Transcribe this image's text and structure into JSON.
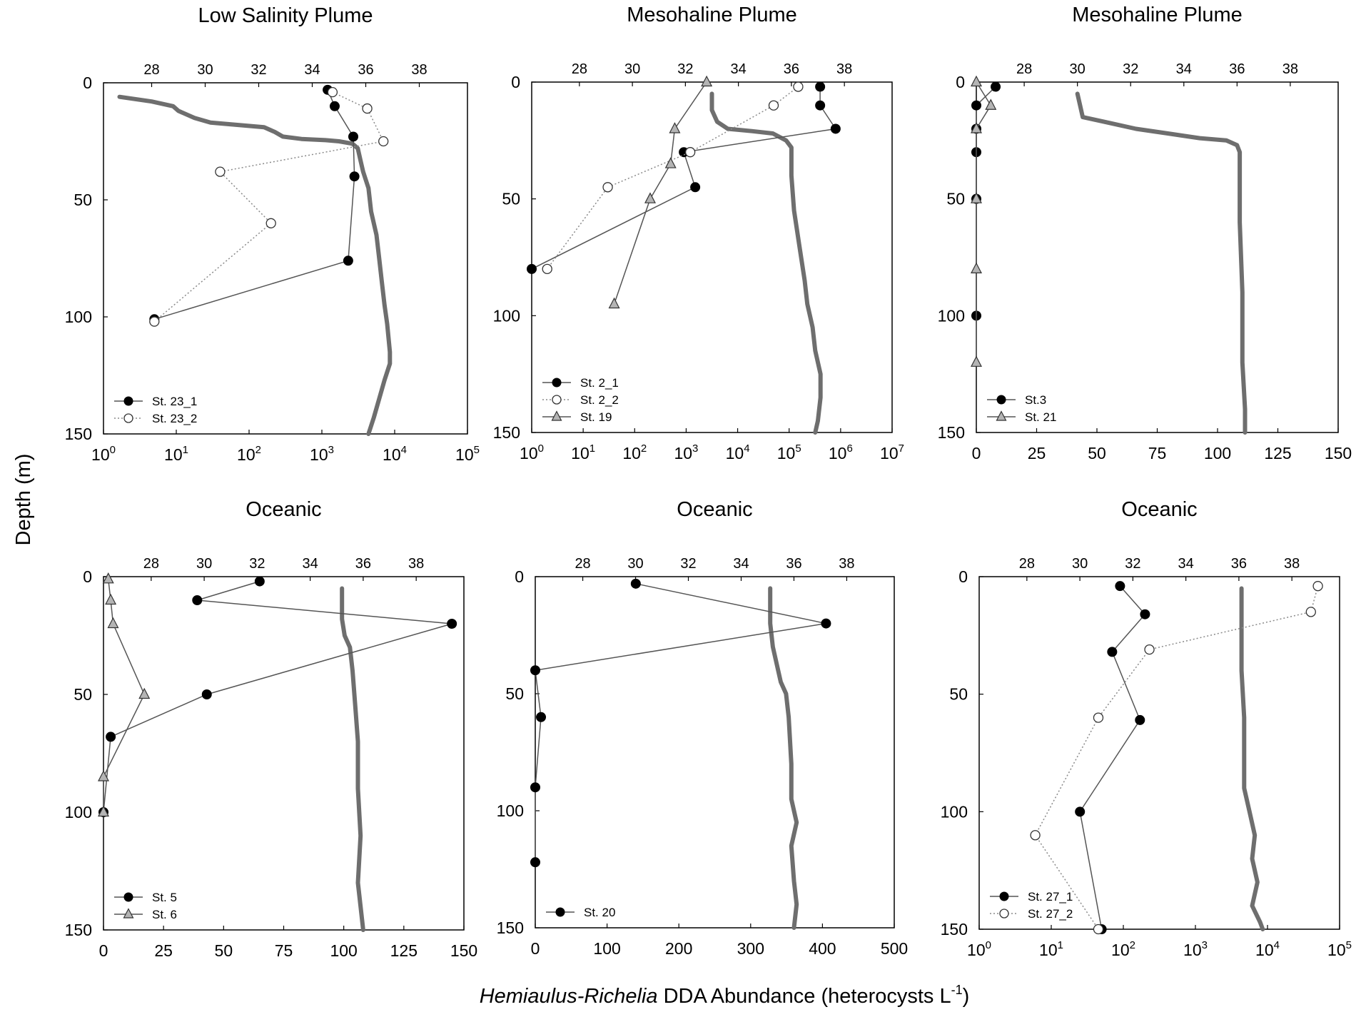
{
  "figure": {
    "ylabel": "Depth (m)",
    "xlabel_italic": "Hemiaulus-Richelia",
    "xlabel_rest": " DDA Abundance (heterocysts L",
    "xlabel_sup": "-1",
    "xlabel_end": ")"
  },
  "colors": {
    "axis": "#000000",
    "salinity": "#6e6e6e",
    "series_line": "#555555",
    "filled": "#000000",
    "open": "#ffffff",
    "triangle": "#b4b4b4"
  },
  "salinity_axis": {
    "ticks": [
      28,
      30,
      32,
      34,
      36,
      38
    ],
    "range": [
      26.2,
      39.8
    ]
  },
  "chart_data": [
    {
      "type": "line",
      "title": "Low Salinity Plume",
      "x_scale": "log",
      "x_ticks": [
        {
          "v": 1,
          "base": "10",
          "exp": "0"
        },
        {
          "v": 10,
          "base": "10",
          "exp": "1"
        },
        {
          "v": 100,
          "base": "10",
          "exp": "2"
        },
        {
          "v": 1000,
          "base": "10",
          "exp": "3"
        },
        {
          "v": 10000,
          "base": "10",
          "exp": "4"
        },
        {
          "v": 100000,
          "base": "10",
          "exp": "5"
        }
      ],
      "xlim": [
        1,
        100000
      ],
      "y_ticks": [
        0,
        50,
        100,
        150
      ],
      "ylim": [
        0,
        150
      ],
      "salinity": [
        [
          26.8,
          6
        ],
        [
          28.0,
          8
        ],
        [
          28.8,
          10
        ],
        [
          29.0,
          12
        ],
        [
          29.6,
          15
        ],
        [
          30.2,
          17
        ],
        [
          31.2,
          18
        ],
        [
          32.2,
          19
        ],
        [
          32.6,
          21
        ],
        [
          32.9,
          23
        ],
        [
          33.6,
          24
        ],
        [
          34.5,
          24.5
        ],
        [
          35.0,
          25
        ],
        [
          35.5,
          26
        ],
        [
          35.7,
          28
        ],
        [
          35.8,
          33
        ],
        [
          35.9,
          38
        ],
        [
          36.1,
          45
        ],
        [
          36.2,
          55
        ],
        [
          36.4,
          65
        ],
        [
          36.5,
          75
        ],
        [
          36.6,
          85
        ],
        [
          36.7,
          95
        ],
        [
          36.8,
          103
        ],
        [
          36.9,
          115
        ],
        [
          36.9,
          120
        ],
        [
          36.7,
          127
        ],
        [
          36.5,
          135
        ],
        [
          36.3,
          143
        ],
        [
          36.1,
          150
        ]
      ],
      "series": [
        {
          "name": "St. 23_1",
          "marker": "filled",
          "dotted": false,
          "points": [
            [
              1200,
              3
            ],
            [
              1500,
              10
            ],
            [
              2700,
              23
            ],
            [
              2800,
              40
            ],
            [
              2300,
              76
            ],
            [
              5,
              101
            ]
          ]
        },
        {
          "name": "St. 23_2",
          "marker": "open",
          "dotted": true,
          "points": [
            [
              1400,
              4
            ],
            [
              4200,
              11
            ],
            [
              7000,
              25
            ],
            [
              40,
              38
            ],
            [
              200,
              60
            ],
            [
              5,
              102
            ]
          ]
        }
      ]
    },
    {
      "type": "line",
      "title": "Mesohaline Plume",
      "x_scale": "log",
      "x_ticks": [
        {
          "v": 1,
          "base": "10",
          "exp": "0"
        },
        {
          "v": 10,
          "base": "10",
          "exp": "1"
        },
        {
          "v": 100,
          "base": "10",
          "exp": "2"
        },
        {
          "v": 1000,
          "base": "10",
          "exp": "3"
        },
        {
          "v": 10000,
          "base": "10",
          "exp": "4"
        },
        {
          "v": 100000,
          "base": "10",
          "exp": "5"
        },
        {
          "v": 1000000,
          "base": "10",
          "exp": "6"
        },
        {
          "v": 10000000,
          "base": "10",
          "exp": "7"
        }
      ],
      "xlim": [
        1,
        10000000
      ],
      "y_ticks": [
        0,
        50,
        100,
        150
      ],
      "ylim": [
        0,
        150
      ],
      "salinity": [
        [
          33.0,
          5
        ],
        [
          33.0,
          12
        ],
        [
          33.2,
          17
        ],
        [
          33.6,
          20
        ],
        [
          34.5,
          21
        ],
        [
          35.3,
          22
        ],
        [
          35.8,
          25
        ],
        [
          36.0,
          28
        ],
        [
          36.0,
          40
        ],
        [
          36.1,
          55
        ],
        [
          36.3,
          70
        ],
        [
          36.5,
          85
        ],
        [
          36.6,
          95
        ],
        [
          36.8,
          105
        ],
        [
          36.9,
          115
        ],
        [
          37.1,
          125
        ],
        [
          37.1,
          135
        ],
        [
          37.0,
          145
        ],
        [
          36.9,
          150
        ]
      ],
      "series": [
        {
          "name": "St. 2_1",
          "marker": "filled",
          "dotted": false,
          "points": [
            [
              400000,
              2
            ],
            [
              400000,
              10
            ],
            [
              800000,
              20
            ],
            [
              900,
              30
            ],
            [
              1500,
              45
            ],
            [
              1,
              80
            ]
          ]
        },
        {
          "name": "St. 2_2",
          "marker": "open",
          "dotted": true,
          "points": [
            [
              150000,
              2
            ],
            [
              50000,
              10
            ],
            [
              1200,
              30
            ],
            [
              30,
              45
            ],
            [
              2,
              80
            ]
          ]
        },
        {
          "name": "St. 19",
          "marker": "triangle",
          "dotted": false,
          "points": [
            [
              2500,
              0
            ],
            [
              600,
              20
            ],
            [
              500,
              35
            ],
            [
              200,
              50
            ],
            [
              40,
              95
            ]
          ]
        }
      ]
    },
    {
      "type": "line",
      "title": "Mesohaline Plume",
      "x_scale": "linear",
      "x_ticks": [
        {
          "v": 0,
          "label": "0"
        },
        {
          "v": 25,
          "label": "25"
        },
        {
          "v": 50,
          "label": "50"
        },
        {
          "v": 75,
          "label": "75"
        },
        {
          "v": 100,
          "label": "100"
        },
        {
          "v": 125,
          "label": "125"
        },
        {
          "v": 150,
          "label": "150"
        }
      ],
      "xlim": [
        0,
        150
      ],
      "y_ticks": [
        0,
        50,
        100,
        150
      ],
      "ylim": [
        0,
        150
      ],
      "salinity": [
        [
          30.0,
          5
        ],
        [
          30.1,
          10
        ],
        [
          30.2,
          15
        ],
        [
          31.0,
          17
        ],
        [
          32.2,
          20
        ],
        [
          33.4,
          22
        ],
        [
          34.6,
          24
        ],
        [
          35.6,
          25
        ],
        [
          36.0,
          27
        ],
        [
          36.1,
          30
        ],
        [
          36.1,
          60
        ],
        [
          36.2,
          90
        ],
        [
          36.2,
          120
        ],
        [
          36.3,
          140
        ],
        [
          36.3,
          150
        ]
      ],
      "series": [
        {
          "name": "St.3",
          "marker": "filled",
          "dotted": false,
          "points": [
            [
              8,
              2
            ],
            [
              0,
              10
            ],
            [
              0,
              20
            ],
            [
              0,
              30
            ],
            [
              0,
              50
            ],
            [
              0,
              100
            ]
          ]
        },
        {
          "name": "St. 21",
          "marker": "triangle",
          "dotted": false,
          "points": [
            [
              0,
              0
            ],
            [
              6,
              10
            ],
            [
              0,
              20
            ],
            [
              0,
              50
            ],
            [
              0,
              80
            ],
            [
              0,
              120
            ]
          ]
        }
      ]
    },
    {
      "type": "line",
      "title": "Oceanic",
      "x_scale": "linear",
      "x_ticks": [
        {
          "v": 0,
          "label": "0"
        },
        {
          "v": 25,
          "label": "25"
        },
        {
          "v": 50,
          "label": "50"
        },
        {
          "v": 75,
          "label": "75"
        },
        {
          "v": 100,
          "label": "100"
        },
        {
          "v": 125,
          "label": "125"
        },
        {
          "v": 150,
          "label": "150"
        }
      ],
      "xlim": [
        0,
        150
      ],
      "y_ticks": [
        0,
        50,
        100,
        150
      ],
      "ylim": [
        0,
        150
      ],
      "salinity": [
        [
          35.2,
          5
        ],
        [
          35.2,
          18
        ],
        [
          35.3,
          25
        ],
        [
          35.5,
          30
        ],
        [
          35.6,
          40
        ],
        [
          35.7,
          55
        ],
        [
          35.8,
          70
        ],
        [
          35.8,
          90
        ],
        [
          35.9,
          110
        ],
        [
          35.8,
          130
        ],
        [
          35.9,
          140
        ],
        [
          36.0,
          150
        ]
      ],
      "series": [
        {
          "name": "St. 5",
          "marker": "filled",
          "dotted": false,
          "points": [
            [
              65,
              2
            ],
            [
              39,
              10
            ],
            [
              145,
              20
            ],
            [
              43,
              50
            ],
            [
              3,
              68
            ],
            [
              0,
              100
            ]
          ]
        },
        {
          "name": "St. 6",
          "marker": "triangle",
          "dotted": false,
          "points": [
            [
              2,
              1
            ],
            [
              3,
              10
            ],
            [
              4,
              20
            ],
            [
              17,
              50
            ],
            [
              0,
              85
            ],
            [
              0,
              100
            ]
          ]
        }
      ]
    },
    {
      "type": "line",
      "title": "Oceanic",
      "x_scale": "linear",
      "x_ticks": [
        {
          "v": 0,
          "label": "0"
        },
        {
          "v": 100,
          "label": "100"
        },
        {
          "v": 200,
          "label": "200"
        },
        {
          "v": 300,
          "label": "300"
        },
        {
          "v": 400,
          "label": "400"
        },
        {
          "v": 500,
          "label": "500"
        }
      ],
      "xlim": [
        0,
        500
      ],
      "y_ticks": [
        0,
        50,
        100,
        150
      ],
      "ylim": [
        0,
        150
      ],
      "salinity": [
        [
          35.1,
          5
        ],
        [
          35.1,
          20
        ],
        [
          35.2,
          30
        ],
        [
          35.5,
          45
        ],
        [
          35.7,
          50
        ],
        [
          35.8,
          60
        ],
        [
          35.9,
          80
        ],
        [
          35.9,
          95
        ],
        [
          36.1,
          105
        ],
        [
          35.9,
          115
        ],
        [
          36.0,
          130
        ],
        [
          36.1,
          140
        ],
        [
          36.0,
          150
        ]
      ],
      "series": [
        {
          "name": "St. 20",
          "marker": "filled",
          "dotted": false,
          "points": [
            [
              140,
              3
            ],
            [
              405,
              20
            ],
            [
              0,
              40
            ],
            [
              8,
              60
            ],
            [
              0,
              90
            ],
            [
              0,
              122
            ]
          ]
        }
      ]
    },
    {
      "type": "line",
      "title": "Oceanic",
      "x_scale": "log",
      "x_ticks": [
        {
          "v": 1,
          "base": "10",
          "exp": "0"
        },
        {
          "v": 10,
          "base": "10",
          "exp": "1"
        },
        {
          "v": 100,
          "base": "10",
          "exp": "2"
        },
        {
          "v": 1000,
          "base": "10",
          "exp": "3"
        },
        {
          "v": 10000,
          "base": "10",
          "exp": "4"
        },
        {
          "v": 100000,
          "base": "10",
          "exp": "5"
        }
      ],
      "xlim": [
        1,
        100000
      ],
      "y_ticks": [
        0,
        50,
        100,
        150
      ],
      "ylim": [
        0,
        150
      ],
      "salinity": [
        [
          36.1,
          5
        ],
        [
          36.1,
          20
        ],
        [
          36.1,
          40
        ],
        [
          36.2,
          60
        ],
        [
          36.2,
          90
        ],
        [
          36.4,
          100
        ],
        [
          36.6,
          110
        ],
        [
          36.5,
          120
        ],
        [
          36.7,
          130
        ],
        [
          36.5,
          140
        ],
        [
          36.8,
          147
        ],
        [
          36.9,
          150
        ]
      ],
      "series": [
        {
          "name": "St. 27_1",
          "marker": "filled",
          "dotted": false,
          "points": [
            [
              90,
              4
            ],
            [
              200,
              16
            ],
            [
              70,
              32
            ],
            [
              170,
              61
            ],
            [
              25,
              100
            ],
            [
              50,
              150
            ]
          ]
        },
        {
          "name": "St. 27_2",
          "marker": "open",
          "dotted": true,
          "points": [
            [
              50000,
              4
            ],
            [
              40000,
              15
            ],
            [
              230,
              31
            ],
            [
              45,
              60
            ],
            [
              6,
              110
            ],
            [
              45,
              150
            ]
          ]
        }
      ]
    }
  ]
}
